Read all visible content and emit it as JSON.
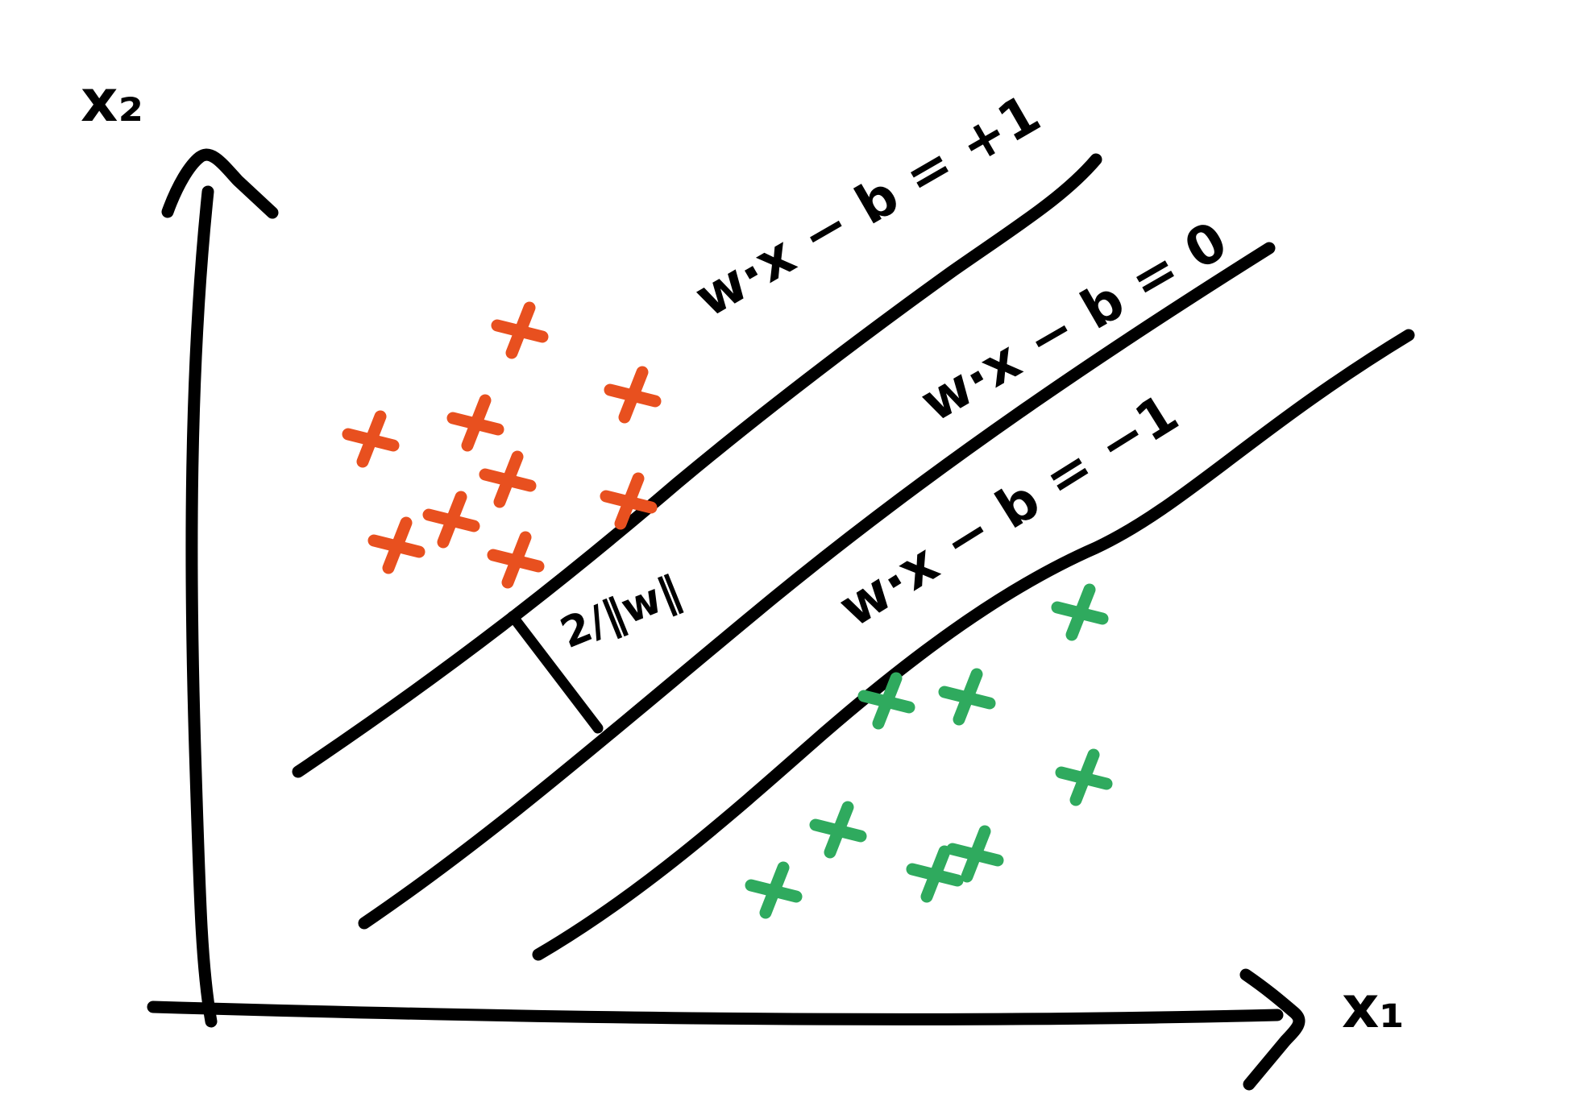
{
  "axes": {
    "x_label": "x₁",
    "y_label": "x₂"
  },
  "hyperplanes": {
    "positive_margin": "w·x − b = +1",
    "decision_boundary": "w·x − b = 0",
    "negative_margin": "w·x − b = −1"
  },
  "margin_label": "2/‖w‖",
  "classes": {
    "positive": {
      "color": "#e8501f",
      "count": 9
    },
    "negative": {
      "color": "#2faa5e",
      "count": 8
    }
  },
  "colors": {
    "ink": "#000000",
    "positive": "#e8501f",
    "negative": "#2faa5e"
  }
}
